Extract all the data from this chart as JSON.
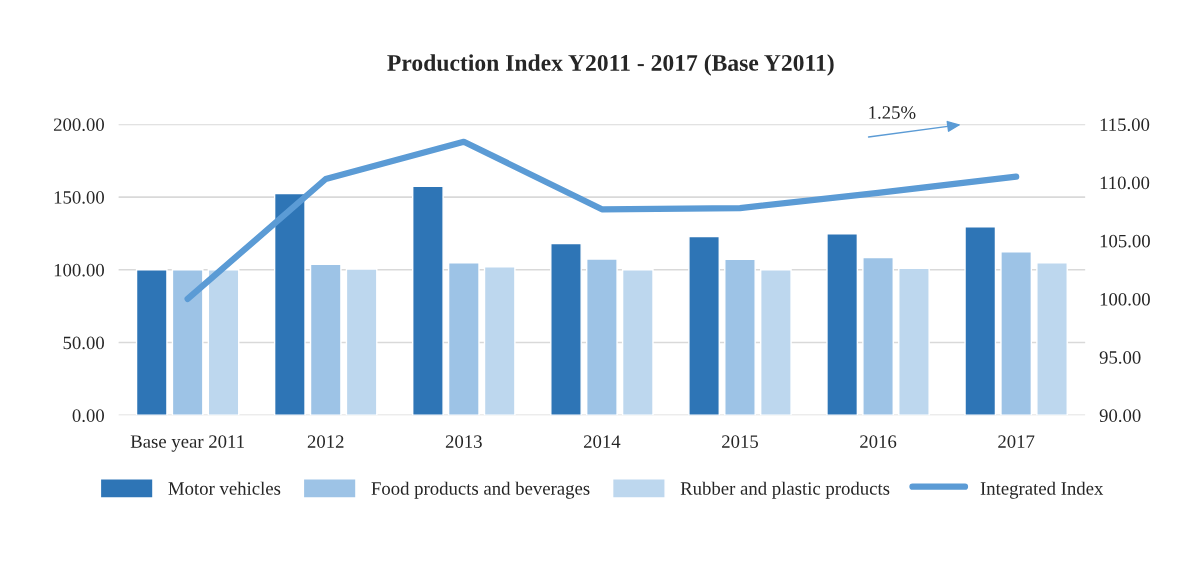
{
  "chart_data": {
    "type": "bar",
    "title": "Production Index Y2011 - 2017 (Base Y2011)",
    "categories": [
      "Base year 2011",
      "2012",
      "2013",
      "2014",
      "2015",
      "2016",
      "2017"
    ],
    "series": [
      {
        "name": "Motor vehicles",
        "color": "#2e75b6",
        "values": [
          100,
          152.4,
          157.4,
          118.1,
          122.9,
          124.8,
          129.6
        ]
      },
      {
        "name": "Food products and beverages",
        "color": "#9dc3e6",
        "values": [
          100,
          103.8,
          104.8,
          107.4,
          107.2,
          108.4,
          112.3
        ]
      },
      {
        "name": "Rubber and plastic products",
        "color": "#bdd7ee",
        "values": [
          100,
          100.5,
          102.1,
          100,
          100,
          101,
          104.8
        ]
      },
      {
        "name": "Integrated Index",
        "color": "#5b9bd5",
        "type": "line",
        "axis": "y2",
        "values": [
          100,
          110.3,
          113.5,
          107.7,
          107.8,
          109.1,
          110.5
        ]
      }
    ],
    "ylim": [
      0,
      200
    ],
    "yticks": [
      {
        "value": 0,
        "label": "0.00"
      },
      {
        "value": 50,
        "label": "50.00"
      },
      {
        "value": 100,
        "label": "100.00"
      },
      {
        "value": 150,
        "label": "150.00"
      },
      {
        "value": 200,
        "label": "200.00"
      }
    ],
    "y2lim": [
      90,
      115
    ],
    "y2ticks": [
      {
        "value": 90,
        "label": "90.00"
      },
      {
        "value": 95,
        "label": "95.00"
      },
      {
        "value": 100,
        "label": "100.00"
      },
      {
        "value": 105,
        "label": "105.00"
      },
      {
        "value": 110,
        "label": "110.00"
      },
      {
        "value": 115,
        "label": "115.00"
      }
    ],
    "annotations": [
      "1.25%"
    ],
    "grid": "y",
    "legend": "bottom",
    "line_style": "solid",
    "marker": "none"
  }
}
